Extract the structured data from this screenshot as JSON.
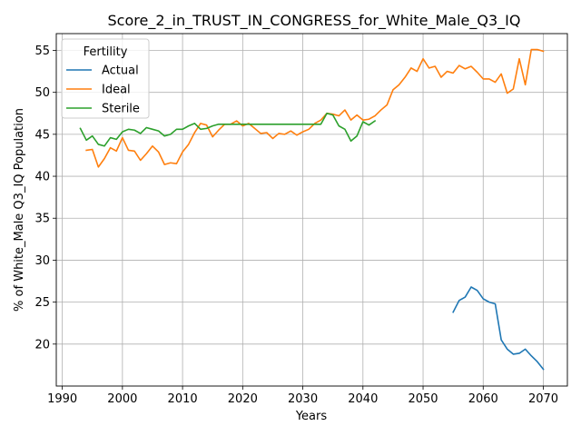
{
  "chart_data": {
    "type": "line",
    "title": "Score_2_in_TRUST_IN_CONGRESS_for_White_Male_Q3_IQ",
    "xlabel": "Years",
    "ylabel": "% of White_Male Q3_IQ Population",
    "xlim": [
      1989,
      2074
    ],
    "ylim": [
      15,
      57
    ],
    "xticks": [
      1990,
      2000,
      2010,
      2020,
      2030,
      2040,
      2050,
      2060,
      2070
    ],
    "yticks": [
      20,
      25,
      30,
      35,
      40,
      45,
      50,
      55
    ],
    "grid": true,
    "legend": {
      "title": "Fertility",
      "placement": "upper-left"
    },
    "series": [
      {
        "name": "Actual",
        "color": "#1f77b4",
        "x": [
          2055,
          2056,
          2057,
          2058,
          2059,
          2060,
          2061,
          2062,
          2063,
          2064,
          2065,
          2066,
          2067,
          2068,
          2069,
          2070
        ],
        "y": [
          23.8,
          25.2,
          25.6,
          26.8,
          26.4,
          25.4,
          25.0,
          24.8,
          20.5,
          19.4,
          18.8,
          18.9,
          19.4,
          18.6,
          17.9,
          17.0
        ]
      },
      {
        "name": "Ideal",
        "color": "#ff7f0e",
        "x": [
          1994,
          1995,
          1996,
          1997,
          1998,
          1999,
          2000,
          2001,
          2002,
          2003,
          2004,
          2005,
          2006,
          2007,
          2008,
          2009,
          2010,
          2011,
          2012,
          2013,
          2014,
          2015,
          2016,
          2017,
          2018,
          2019,
          2020,
          2021,
          2022,
          2023,
          2024,
          2025,
          2026,
          2027,
          2028,
          2029,
          2030,
          2031,
          2032,
          2033,
          2034,
          2035,
          2036,
          2037,
          2038,
          2039,
          2040,
          2041,
          2042,
          2043,
          2044,
          2045,
          2046,
          2047,
          2048,
          2049,
          2050,
          2051,
          2052,
          2053,
          2054,
          2055,
          2056,
          2057,
          2058,
          2059,
          2060,
          2061,
          2062,
          2063,
          2064,
          2065,
          2066,
          2067,
          2068,
          2069,
          2070
        ],
        "y": [
          43.1,
          43.2,
          41.1,
          42.1,
          43.4,
          43.0,
          44.6,
          43.1,
          43.0,
          41.9,
          42.7,
          43.6,
          42.9,
          41.4,
          41.6,
          41.5,
          42.9,
          43.8,
          45.2,
          46.3,
          46.1,
          44.7,
          45.5,
          46.2,
          46.2,
          46.6,
          46.0,
          46.3,
          45.7,
          45.1,
          45.2,
          44.5,
          45.1,
          45.0,
          45.4,
          44.9,
          45.3,
          45.6,
          46.3,
          46.7,
          47.5,
          47.4,
          47.2,
          47.9,
          46.7,
          47.3,
          46.7,
          46.8,
          47.2,
          47.9,
          48.5,
          50.3,
          50.9,
          51.8,
          52.9,
          52.5,
          54.0,
          52.9,
          53.1,
          51.8,
          52.5,
          52.3,
          53.2,
          52.8,
          53.1,
          52.4,
          51.6,
          51.6,
          51.2,
          52.2,
          49.9,
          50.4,
          54.0,
          50.9,
          55.1,
          55.1,
          54.9
        ]
      },
      {
        "name": "Sterile",
        "color": "#2ca02c",
        "x": [
          1993,
          1994,
          1995,
          1996,
          1997,
          1998,
          1999,
          2000,
          2001,
          2002,
          2003,
          2004,
          2005,
          2006,
          2007,
          2008,
          2009,
          2010,
          2011,
          2012,
          2013,
          2014,
          2015,
          2016,
          2017,
          2018,
          2019,
          2020,
          2021,
          2022,
          2023,
          2024,
          2025,
          2026,
          2027,
          2028,
          2029,
          2030,
          2031,
          2032,
          2033,
          2034,
          2035,
          2036,
          2037,
          2038,
          2039,
          2040,
          2041,
          2042
        ],
        "y": [
          45.7,
          44.3,
          44.8,
          43.8,
          43.6,
          44.6,
          44.4,
          45.3,
          45.6,
          45.5,
          45.1,
          45.8,
          45.6,
          45.4,
          44.8,
          45.0,
          45.6,
          45.6,
          46.0,
          46.3,
          45.6,
          45.7,
          46.0,
          46.2,
          46.2,
          46.2,
          46.2,
          46.2,
          46.2,
          46.2,
          46.2,
          46.2,
          46.2,
          46.2,
          46.2,
          46.2,
          46.2,
          46.2,
          46.2,
          46.2,
          46.2,
          47.5,
          47.3,
          46.0,
          45.6,
          44.2,
          44.8,
          46.5,
          46.1,
          46.6
        ]
      }
    ]
  }
}
